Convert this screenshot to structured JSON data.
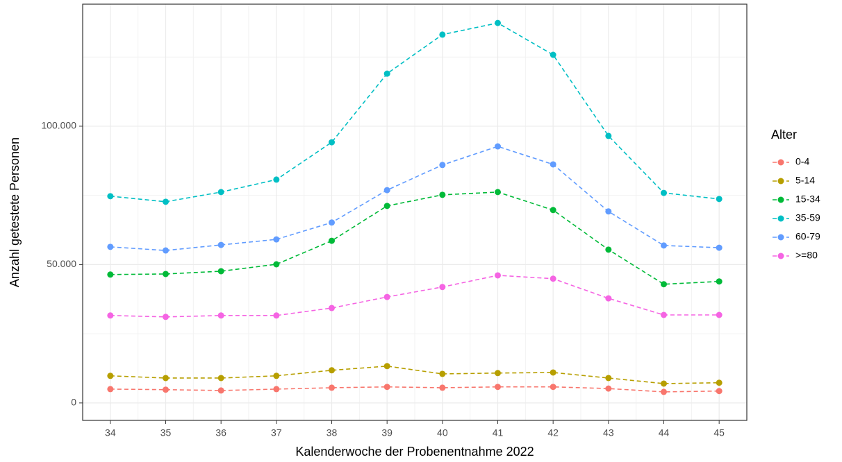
{
  "chart_data": {
    "type": "line",
    "x_label": "Kalenderwoche der Probenentnahme 2022",
    "y_label": "Anzahl getestete Personen",
    "legend_title": "Alter",
    "legend_position": "right",
    "grid": true,
    "x": [
      34,
      35,
      36,
      37,
      38,
      39,
      40,
      41,
      42,
      43,
      44,
      45
    ],
    "xlim": [
      33.5,
      45.5
    ],
    "xticks": [
      34,
      35,
      36,
      37,
      38,
      39,
      40,
      41,
      42,
      43,
      44,
      45
    ],
    "ylim": [
      -6300,
      144100
    ],
    "yticks": [
      0,
      {
        "value": 50000,
        "label": "50.000"
      },
      {
        "value": 100000,
        "label": "100.000"
      }
    ],
    "series": [
      {
        "name": "0-4",
        "color": "#F8766D",
        "values": [
          5000,
          4800,
          4500,
          5000,
          5500,
          5800,
          5500,
          5800,
          5800,
          5200,
          4000,
          4300
        ]
      },
      {
        "name": "5-14",
        "color": "#B79F00",
        "values": [
          9800,
          9000,
          9000,
          9800,
          11800,
          13300,
          10500,
          10800,
          11000,
          9000,
          7000,
          7300
        ]
      },
      {
        "name": "15-34",
        "color": "#00BA38",
        "values": [
          46400,
          46600,
          47600,
          50100,
          58600,
          71200,
          75200,
          76200,
          69700,
          55400,
          42900,
          43900
        ]
      },
      {
        "name": "35-59",
        "color": "#00BFC4",
        "values": [
          74700,
          72700,
          76200,
          80700,
          94200,
          119000,
          133100,
          137300,
          125800,
          96500,
          75900,
          73700
        ]
      },
      {
        "name": "60-79",
        "color": "#619CFF",
        "values": [
          56400,
          55100,
          57100,
          59100,
          65200,
          76900,
          86000,
          92700,
          86200,
          69200,
          56900,
          56100
        ]
      },
      {
        "name": ">=80",
        "color": "#F564E3",
        "values": [
          31600,
          31100,
          31600,
          31600,
          34300,
          38300,
          41900,
          46100,
          44900,
          37800,
          31800,
          31800
        ]
      }
    ]
  }
}
